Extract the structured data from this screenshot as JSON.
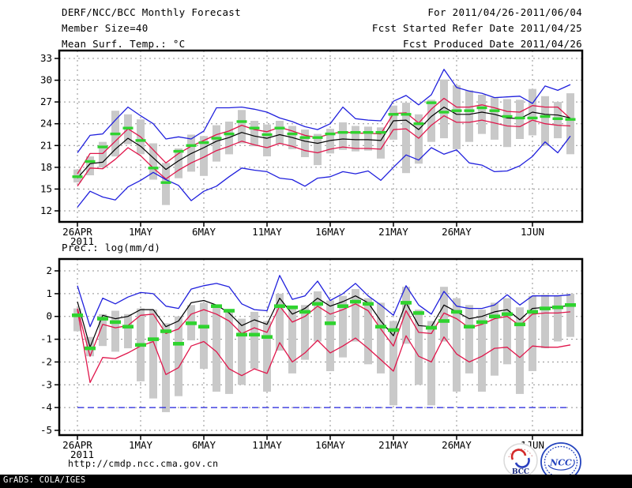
{
  "header": {
    "title": "DERF/NCC/BCC Monthly Forecast",
    "member_size": "Member Size=40",
    "temp_label": "Mean Surf. Temp.: °C",
    "for_range": "For 2011/04/26-2011/06/04",
    "fcst_started": "Fcst Started Refer Date 2011/04/25",
    "fcst_produced": "Fcst Produced Date 2011/04/26"
  },
  "precip_label": "Prec.: log(mm/d)",
  "footer": {
    "url": "http://cmdp.ncc.cma.gov.cn",
    "grads_credit": "GrADS: COLA/IGES",
    "logos": {
      "bcc_label": "BCC",
      "ncc_label": "NCC"
    }
  },
  "colors": {
    "blue": "#2020dd",
    "red": "#e0164b",
    "green": "#2fd32f",
    "black": "#000000",
    "bar_gray": "#c9c9c9",
    "grid_gray": "#909090",
    "logo_navy": "#1a2a80",
    "logo_blue": "#2343bd",
    "logo_red": "#d42a2a"
  },
  "chart_data": [
    {
      "id": "temp",
      "type": "line",
      "title": "Mean Surf. Temp.: °C",
      "ylabel": "degrees C",
      "ylim": [
        10.5,
        34.1
      ],
      "yticks": [
        12,
        15,
        18,
        21,
        24,
        27,
        30,
        33
      ],
      "grid": true,
      "x": [
        "26APR",
        "27APR",
        "28APR",
        "29APR",
        "30APR",
        "1MAY",
        "2MAY",
        "3MAY",
        "4MAY",
        "5MAY",
        "6MAY",
        "7MAY",
        "8MAY",
        "9MAY",
        "10MAY",
        "11MAY",
        "12MAY",
        "13MAY",
        "14MAY",
        "15MAY",
        "16MAY",
        "17MAY",
        "18MAY",
        "19MAY",
        "20MAY",
        "21MAY",
        "22MAY",
        "23MAY",
        "24MAY",
        "25MAY",
        "26MAY",
        "27MAY",
        "28MAY",
        "29MAY",
        "30MAY",
        "31MAY",
        "1JUN",
        "2JUN",
        "3JUN",
        "4JUN"
      ],
      "xticks": [
        {
          "i": 0,
          "label": "26APR",
          "sub": "2011"
        },
        {
          "i": 5,
          "label": "1MAY"
        },
        {
          "i": 10,
          "label": "6MAY"
        },
        {
          "i": 15,
          "label": "11MAY"
        },
        {
          "i": 20,
          "label": "16MAY"
        },
        {
          "i": 25,
          "label": "21MAY"
        },
        {
          "i": 30,
          "label": "26MAY"
        },
        {
          "i": 36,
          "label": "1JUN"
        }
      ],
      "bars": {
        "name": "ensemble-spread",
        "low": [
          15.9,
          16.9,
          18.0,
          19.5,
          21.2,
          19.8,
          16.3,
          12.8,
          16.5,
          17.4,
          16.8,
          18.8,
          19.8,
          21.3,
          20.9,
          19.5,
          21.2,
          20.5,
          19.4,
          18.3,
          19.9,
          20.4,
          20.2,
          20.3,
          19.2,
          21.8,
          17.2,
          18.5,
          21.5,
          22.0,
          20.5,
          21.5,
          22.6,
          21.8,
          20.8,
          21.9,
          22.4,
          21.0,
          22.0,
          19.8
        ],
        "high": [
          17.7,
          19.5,
          21.5,
          25.8,
          25.3,
          24.6,
          21.3,
          18.6,
          20.6,
          22.5,
          22.3,
          23.8,
          24.3,
          25.9,
          24.4,
          23.9,
          24.4,
          23.7,
          23.2,
          22.6,
          23.3,
          24.2,
          23.7,
          23.6,
          23.5,
          26.5,
          26.9,
          25.3,
          27.3,
          30.1,
          29.3,
          28.6,
          28.0,
          27.6,
          27.4,
          27.3,
          28.8,
          27.8,
          27.0,
          28.2
        ]
      },
      "series": [
        {
          "name": "ensemble-max",
          "color": "blue",
          "style": "line",
          "values": [
            20.0,
            22.4,
            22.6,
            24.5,
            26.3,
            25.1,
            24.0,
            21.9,
            22.2,
            21.9,
            23.0,
            26.2,
            26.2,
            26.3,
            26.0,
            25.6,
            24.8,
            24.3,
            23.6,
            23.2,
            24.0,
            26.3,
            24.7,
            24.5,
            24.4,
            27.1,
            27.9,
            26.6,
            28.0,
            31.5,
            29.0,
            28.5,
            28.2,
            27.6,
            27.7,
            27.8,
            26.8,
            29.2,
            28.6,
            29.4
          ]
        },
        {
          "name": "upper-red",
          "color": "red",
          "style": "line",
          "values": [
            17.1,
            19.9,
            19.9,
            21.6,
            23.3,
            22.2,
            20.4,
            18.6,
            19.9,
            20.9,
            21.7,
            22.5,
            23.0,
            23.8,
            23.2,
            22.9,
            23.5,
            23.0,
            22.4,
            22.1,
            22.6,
            22.9,
            22.7,
            22.7,
            22.6,
            25.4,
            25.5,
            24.1,
            26.0,
            27.5,
            26.3,
            26.3,
            26.6,
            26.2,
            25.7,
            25.6,
            26.5,
            26.3,
            26.3,
            24.7
          ]
        },
        {
          "name": "lower-red",
          "color": "red",
          "style": "line",
          "values": [
            15.4,
            17.9,
            17.8,
            19.1,
            20.7,
            19.6,
            17.9,
            16.4,
            17.6,
            18.6,
            19.4,
            20.3,
            20.9,
            21.6,
            21.1,
            20.7,
            21.3,
            20.9,
            20.3,
            20.0,
            20.5,
            20.8,
            20.6,
            20.6,
            20.5,
            23.2,
            23.3,
            22.0,
            23.8,
            25.1,
            24.2,
            24.2,
            24.5,
            24.1,
            23.7,
            23.6,
            24.5,
            24.0,
            23.8,
            23.7
          ]
        },
        {
          "name": "ensemble-mean",
          "color": "black",
          "style": "line",
          "values": [
            16.5,
            18.5,
            18.7,
            20.5,
            22.0,
            20.9,
            19.3,
            17.7,
            18.9,
            19.9,
            20.7,
            21.6,
            22.1,
            22.8,
            22.3,
            22.0,
            22.5,
            22.1,
            21.6,
            21.3,
            21.7,
            21.9,
            21.8,
            21.8,
            21.7,
            24.4,
            24.5,
            23.2,
            25.0,
            26.3,
            25.3,
            25.3,
            25.6,
            25.3,
            24.8,
            24.7,
            25.6,
            25.3,
            25.2,
            24.8
          ]
        },
        {
          "name": "ensemble-min",
          "color": "blue",
          "style": "line",
          "values": [
            12.5,
            14.7,
            13.9,
            13.5,
            15.3,
            16.2,
            17.3,
            16.3,
            15.5,
            13.4,
            14.7,
            15.4,
            16.7,
            17.9,
            17.6,
            17.4,
            16.5,
            16.3,
            15.4,
            16.5,
            16.7,
            17.4,
            17.1,
            17.5,
            16.2,
            18.0,
            19.7,
            19.0,
            20.7,
            19.8,
            20.4,
            18.6,
            18.3,
            17.4,
            17.5,
            18.2,
            19.5,
            21.5,
            20.0,
            22.3
          ]
        },
        {
          "name": "median",
          "color": "green",
          "style": "dash-marker",
          "values": [
            16.7,
            18.8,
            20.8,
            22.6,
            23.4,
            21.7,
            17.9,
            15.9,
            20.2,
            21.0,
            21.4,
            22.0,
            22.6,
            24.3,
            23.4,
            22.5,
            23.4,
            22.6,
            22.1,
            22.1,
            22.6,
            22.8,
            22.8,
            22.8,
            22.8,
            25.3,
            25.3,
            24.0,
            26.9,
            25.6,
            25.8,
            25.8,
            26.2,
            25.8,
            25.0,
            24.8,
            24.8,
            25.0,
            24.7,
            24.6
          ]
        }
      ]
    },
    {
      "id": "prec",
      "type": "line",
      "title": "Prec.: log(mm/d)",
      "ylabel": "log(mm/d)",
      "ylim": [
        -5.2,
        2.5
      ],
      "yticks": [
        -5,
        -4,
        -3,
        -2,
        -1,
        0,
        1,
        2
      ],
      "grid": true,
      "x": [
        "26APR",
        "27APR",
        "28APR",
        "29APR",
        "30APR",
        "1MAY",
        "2MAY",
        "3MAY",
        "4MAY",
        "5MAY",
        "6MAY",
        "7MAY",
        "8MAY",
        "9MAY",
        "10MAY",
        "11MAY",
        "12MAY",
        "13MAY",
        "14MAY",
        "15MAY",
        "16MAY",
        "17MAY",
        "18MAY",
        "19MAY",
        "20MAY",
        "21MAY",
        "22MAY",
        "23MAY",
        "24MAY",
        "25MAY",
        "26MAY",
        "27MAY",
        "28MAY",
        "29MAY",
        "30MAY",
        "31MAY",
        "1JUN",
        "2JUN",
        "3JUN",
        "4JUN"
      ],
      "xticks": [
        {
          "i": 0,
          "label": "26APR",
          "sub": "2011"
        },
        {
          "i": 5,
          "label": "1MAY"
        },
        {
          "i": 10,
          "label": "6MAY"
        },
        {
          "i": 15,
          "label": "11MAY"
        },
        {
          "i": 20,
          "label": "16MAY"
        },
        {
          "i": 25,
          "label": "21MAY"
        },
        {
          "i": 30,
          "label": "26MAY"
        },
        {
          "i": 36,
          "label": "1JUN"
        }
      ],
      "bars": {
        "name": "ensemble-spread",
        "low": [
          -0.65,
          -1.75,
          -1.3,
          -1.55,
          -1.4,
          -2.85,
          -3.6,
          -4.2,
          -3.5,
          -1.05,
          -2.3,
          -3.3,
          -3.4,
          -3.0,
          -2.3,
          -3.3,
          -1.5,
          -2.5,
          -1.9,
          -1.1,
          -2.4,
          -1.8,
          -1.1,
          -2.1,
          -2.5,
          -3.9,
          -1.2,
          -3.0,
          -3.9,
          -1.1,
          -3.3,
          -2.5,
          -3.3,
          -2.6,
          -2.1,
          -3.4,
          -2.4,
          -1.4,
          -1.1,
          -0.9
        ],
        "high": [
          0.35,
          -0.9,
          0.1,
          0.25,
          0.1,
          0.35,
          0.3,
          -0.3,
          0.0,
          0.5,
          0.6,
          0.5,
          0.3,
          -0.1,
          0.2,
          -0.2,
          1.0,
          0.4,
          0.5,
          1.1,
          0.7,
          0.9,
          1.2,
          0.8,
          0.6,
          -0.2,
          1.3,
          0.3,
          -0.2,
          1.3,
          0.8,
          0.5,
          0.3,
          0.6,
          0.8,
          0.4,
          0.9,
          0.95,
          0.9,
          1.0
        ]
      },
      "series": [
        {
          "name": "ensemble-max",
          "color": "blue",
          "style": "line",
          "values": [
            1.35,
            -0.45,
            0.8,
            0.55,
            0.85,
            1.05,
            1.0,
            0.45,
            0.35,
            1.2,
            1.35,
            1.45,
            1.3,
            0.55,
            0.3,
            0.25,
            1.8,
            0.75,
            0.9,
            1.55,
            0.7,
            1.0,
            1.45,
            0.9,
            0.5,
            0.05,
            1.35,
            0.5,
            0.1,
            1.1,
            0.45,
            0.35,
            0.35,
            0.5,
            0.95,
            0.5,
            0.9,
            0.9,
            0.9,
            0.95
          ]
        },
        {
          "name": "upper-red",
          "color": "red",
          "style": "line",
          "values": [
            0.35,
            -1.75,
            -0.35,
            -0.5,
            -0.4,
            0.05,
            0.1,
            -0.75,
            -0.55,
            0.1,
            0.3,
            0.1,
            -0.2,
            -0.75,
            -0.5,
            -0.7,
            0.45,
            -0.25,
            0.0,
            0.45,
            0.1,
            0.3,
            0.55,
            0.25,
            -0.55,
            -1.3,
            0.25,
            -0.7,
            -0.75,
            0.15,
            -0.1,
            -0.5,
            -0.35,
            -0.1,
            0.0,
            -0.4,
            0.1,
            0.15,
            0.15,
            0.2
          ]
        },
        {
          "name": "lower-red",
          "color": "red",
          "style": "line",
          "values": [
            0.3,
            -2.9,
            -1.8,
            -1.85,
            -1.6,
            -1.3,
            -1.1,
            -2.55,
            -2.25,
            -1.3,
            -1.1,
            -1.55,
            -2.3,
            -2.6,
            -2.3,
            -2.5,
            -1.15,
            -2.0,
            -1.6,
            -1.05,
            -1.6,
            -1.3,
            -0.95,
            -1.4,
            -1.9,
            -2.4,
            -0.85,
            -1.75,
            -2.0,
            -0.9,
            -1.65,
            -2.0,
            -1.75,
            -1.4,
            -1.35,
            -1.8,
            -1.3,
            -1.35,
            -1.35,
            -1.25
          ]
        },
        {
          "name": "ensemble-mean",
          "color": "black",
          "style": "line",
          "values": [
            0.65,
            -1.35,
            0.05,
            -0.1,
            0.0,
            0.3,
            0.3,
            -0.45,
            -0.2,
            0.6,
            0.7,
            0.5,
            0.15,
            -0.4,
            -0.15,
            -0.35,
            0.8,
            0.1,
            0.35,
            0.8,
            0.45,
            0.65,
            0.9,
            0.6,
            -0.2,
            -0.85,
            0.6,
            -0.4,
            -0.45,
            0.5,
            0.2,
            -0.1,
            0.0,
            0.2,
            0.3,
            -0.15,
            0.35,
            0.4,
            0.4,
            0.5
          ]
        },
        {
          "name": "ensemble-min",
          "color": "blue",
          "style": "dashed-line",
          "values": [
            -4.0,
            -4.0,
            -4.0,
            -4.0,
            -4.0,
            -4.0,
            -4.0,
            -4.0,
            -4.0,
            -4.0,
            -4.0,
            -4.0,
            -4.0,
            -4.0,
            -4.0,
            -4.0,
            -4.0,
            -4.0,
            -4.0,
            -4.0,
            -4.0,
            -4.0,
            -4.0,
            -4.0,
            -4.0,
            -4.0,
            -4.0,
            -4.0,
            -4.0,
            -4.0,
            -4.0,
            -4.0,
            -4.0,
            -4.0,
            -4.0,
            -4.0,
            -4.0,
            -4.0,
            -4.0,
            -4.0
          ]
        },
        {
          "name": "median",
          "color": "green",
          "style": "dash-marker",
          "values": [
            0.05,
            -1.4,
            -0.1,
            -0.25,
            -0.45,
            -1.25,
            -1.0,
            -0.65,
            -1.2,
            -0.3,
            -0.45,
            0.45,
            0.25,
            -0.8,
            -0.8,
            -0.9,
            0.45,
            0.4,
            0.2,
            0.55,
            -0.3,
            0.45,
            0.65,
            0.55,
            -0.45,
            -0.6,
            0.6,
            0.15,
            -0.5,
            -0.2,
            0.2,
            -0.45,
            -0.25,
            0.0,
            0.1,
            -0.35,
            0.2,
            0.35,
            0.4,
            0.5
          ]
        }
      ]
    }
  ]
}
